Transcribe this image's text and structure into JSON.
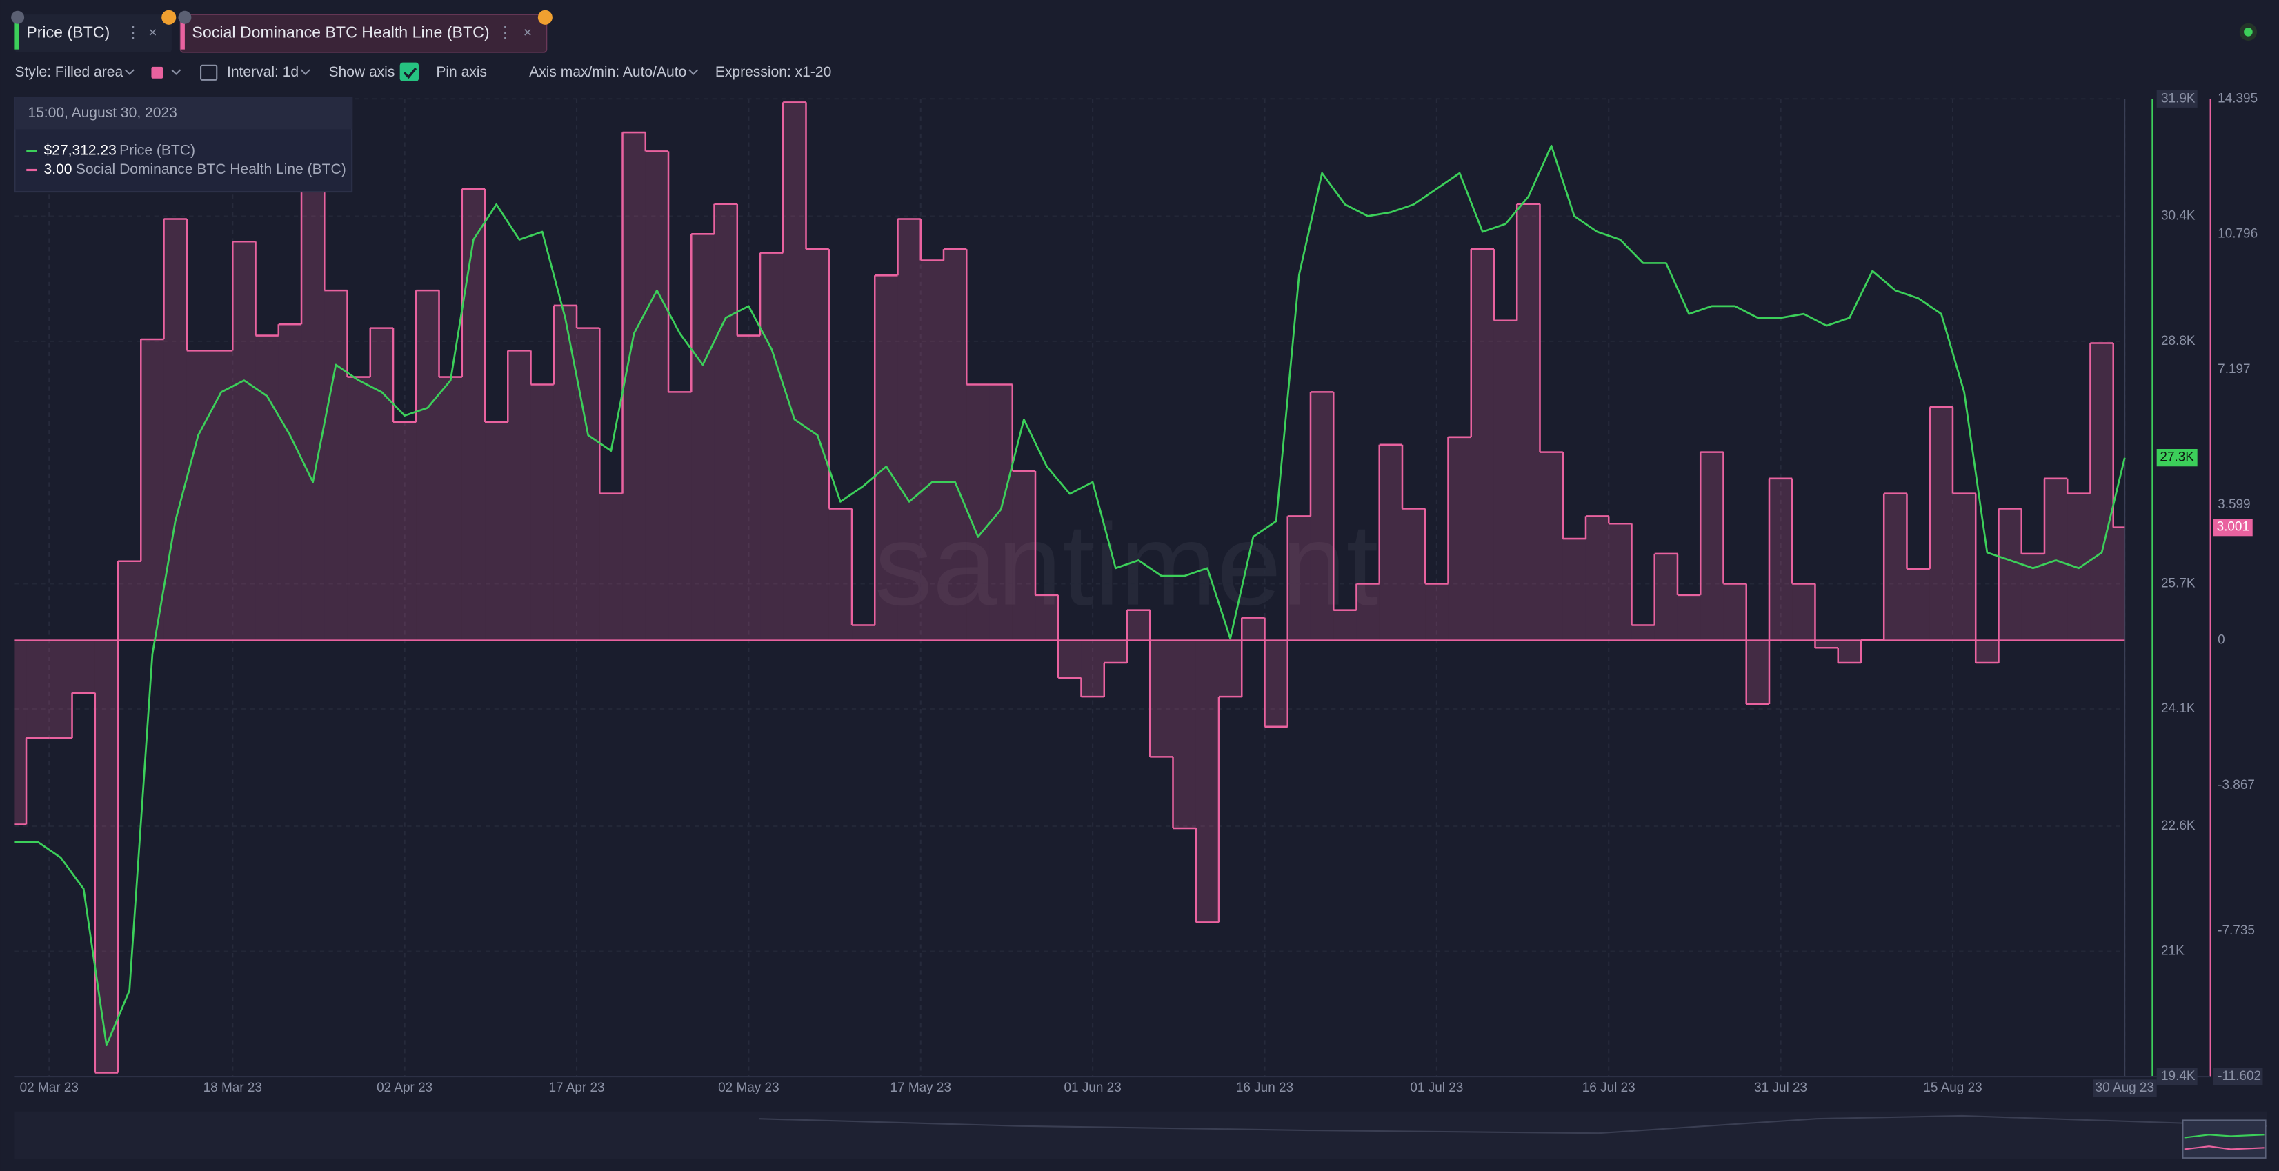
{
  "watermark": "santiment",
  "toolbar": {
    "style": "Style: Filled area",
    "interval": "Interval: 1d",
    "show_axis": "Show axis",
    "pin_axis": "Pin axis",
    "axis_maxmin": "Axis max/min: Auto/Auto",
    "expression": "Expression: x1-20"
  },
  "chart_data": {
    "type": "line",
    "x": [
      "2023-02-27",
      "2023-03-01",
      "2023-03-03",
      "2023-03-05",
      "2023-03-07",
      "2023-03-09",
      "2023-03-11",
      "2023-03-13",
      "2023-03-15",
      "2023-03-17",
      "2023-03-19",
      "2023-03-21",
      "2023-03-23",
      "2023-03-25",
      "2023-03-27",
      "2023-03-29",
      "2023-03-31",
      "2023-04-02",
      "2023-04-04",
      "2023-04-06",
      "2023-04-08",
      "2023-04-10",
      "2023-04-12",
      "2023-04-14",
      "2023-04-16",
      "2023-04-18",
      "2023-04-20",
      "2023-04-22",
      "2023-04-24",
      "2023-04-26",
      "2023-04-28",
      "2023-04-30",
      "2023-05-02",
      "2023-05-04",
      "2023-05-06",
      "2023-05-08",
      "2023-05-10",
      "2023-05-12",
      "2023-05-14",
      "2023-05-16",
      "2023-05-18",
      "2023-05-20",
      "2023-05-22",
      "2023-05-24",
      "2023-05-26",
      "2023-05-28",
      "2023-05-30",
      "2023-06-01",
      "2023-06-03",
      "2023-06-05",
      "2023-06-07",
      "2023-06-09",
      "2023-06-11",
      "2023-06-13",
      "2023-06-15",
      "2023-06-17",
      "2023-06-19",
      "2023-06-21",
      "2023-06-23",
      "2023-06-25",
      "2023-06-27",
      "2023-06-29",
      "2023-07-01",
      "2023-07-03",
      "2023-07-05",
      "2023-07-07",
      "2023-07-09",
      "2023-07-11",
      "2023-07-13",
      "2023-07-15",
      "2023-07-17",
      "2023-07-19",
      "2023-07-21",
      "2023-07-23",
      "2023-07-25",
      "2023-07-27",
      "2023-07-29",
      "2023-07-31",
      "2023-08-02",
      "2023-08-04",
      "2023-08-06",
      "2023-08-08",
      "2023-08-10",
      "2023-08-12",
      "2023-08-14",
      "2023-08-16",
      "2023-08-18",
      "2023-08-20",
      "2023-08-22",
      "2023-08-24",
      "2023-08-26",
      "2023-08-28",
      "2023-08-30"
    ],
    "xlim": [
      "2023-02-27",
      "2023-08-30"
    ],
    "xticks": [
      {
        "value": "2023-03-02",
        "label": "02 Mar 23"
      },
      {
        "value": "2023-03-18",
        "label": "18 Mar 23"
      },
      {
        "value": "2023-04-02",
        "label": "02 Apr 23"
      },
      {
        "value": "2023-04-17",
        "label": "17 Apr 23"
      },
      {
        "value": "2023-05-02",
        "label": "02 May 23"
      },
      {
        "value": "2023-05-17",
        "label": "17 May 23"
      },
      {
        "value": "2023-06-01",
        "label": "01 Jun 23"
      },
      {
        "value": "2023-06-16",
        "label": "16 Jun 23"
      },
      {
        "value": "2023-07-01",
        "label": "01 Jul 23"
      },
      {
        "value": "2023-07-16",
        "label": "16 Jul 23"
      },
      {
        "value": "2023-07-31",
        "label": "31 Jul 23"
      },
      {
        "value": "2023-08-15",
        "label": "15 Aug 23"
      },
      {
        "value": "2023-08-30",
        "label": "30 Aug 23"
      }
    ],
    "ylim": [
      19400,
      31900
    ],
    "yticks": [
      {
        "value": 19400,
        "label": "19.4K"
      },
      {
        "value": 21000,
        "label": "21K"
      },
      {
        "value": 22600,
        "label": "22.6K"
      },
      {
        "value": 24100,
        "label": "24.1K"
      },
      {
        "value": 25700,
        "label": "25.7K"
      },
      {
        "value": 28800,
        "label": "28.8K"
      },
      {
        "value": 30400,
        "label": "30.4K"
      },
      {
        "value": 31900,
        "label": "31.9K"
      }
    ],
    "y2lim": [
      -11.602,
      14.395
    ],
    "y2ticks": [
      -11.602,
      -7.735,
      -3.867,
      0,
      3.599,
      7.197,
      10.796,
      14.395
    ],
    "grid": true,
    "series": [
      {
        "name": "Price (BTC)",
        "color": "#3ccf5a",
        "values": [
          22400,
          22400,
          22200,
          21800,
          19800,
          20500,
          24800,
          26500,
          27600,
          28150,
          28300,
          28100,
          27600,
          27000,
          28500,
          28300,
          28150,
          27850,
          27950,
          28300,
          30100,
          30550,
          30100,
          30200,
          29100,
          27600,
          27400,
          28900,
          29450,
          28900,
          28500,
          29100,
          29250,
          28700,
          27800,
          27600,
          26750,
          26950,
          27200,
          26750,
          27000,
          27000,
          26300,
          26650,
          27800,
          27200,
          26850,
          27000,
          25900,
          26000,
          25800,
          25800,
          25900,
          25000,
          26300,
          26500,
          29650,
          30950,
          30550,
          30400,
          30450,
          30550,
          30750,
          30950,
          30200,
          30300,
          30650,
          31300,
          30400,
          30200,
          30100,
          29800,
          29800,
          29150,
          29250,
          29250,
          29100,
          29100,
          29150,
          29000,
          29100,
          29700,
          29450,
          29350,
          29150,
          28150,
          26100,
          26000,
          25900,
          26000,
          25900,
          26100,
          27312.23
        ]
      },
      {
        "name": "Social Dominance BTC Health Line (BTC)",
        "color": "#e9629f",
        "axis": "y2",
        "values": [
          -4.9,
          -2.6,
          -2.6,
          -1.4,
          -11.5,
          2.1,
          8.0,
          11.2,
          7.7,
          7.7,
          10.6,
          8.1,
          8.4,
          12.6,
          9.3,
          7.0,
          8.3,
          5.8,
          9.3,
          7.0,
          12.0,
          5.8,
          7.7,
          6.8,
          8.9,
          8.3,
          3.9,
          13.5,
          13.0,
          6.6,
          10.8,
          11.6,
          8.1,
          10.3,
          14.3,
          10.4,
          3.5,
          0.4,
          9.7,
          11.2,
          10.1,
          10.4,
          6.8,
          6.8,
          4.5,
          1.2,
          -1.0,
          -1.5,
          -0.6,
          0.8,
          -3.1,
          -5.0,
          -7.5,
          -1.5,
          0.6,
          -2.3,
          3.3,
          6.6,
          0.8,
          1.5,
          5.2,
          3.5,
          1.5,
          5.4,
          10.4,
          8.5,
          11.6,
          5.0,
          2.7,
          3.3,
          3.1,
          0.4,
          2.3,
          1.2,
          5.0,
          1.5,
          -1.7,
          4.3,
          1.5,
          -0.2,
          -0.6,
          0.0,
          3.9,
          1.9,
          6.2,
          3.9,
          -0.6,
          3.5,
          2.3,
          4.3,
          3.9,
          7.9,
          3.001
        ]
      }
    ],
    "price_badge": "27.3K",
    "tooltip": {
      "date": "15:00, August 30, 2023",
      "values": [
        "$27,312.23",
        "3.00"
      ]
    }
  }
}
